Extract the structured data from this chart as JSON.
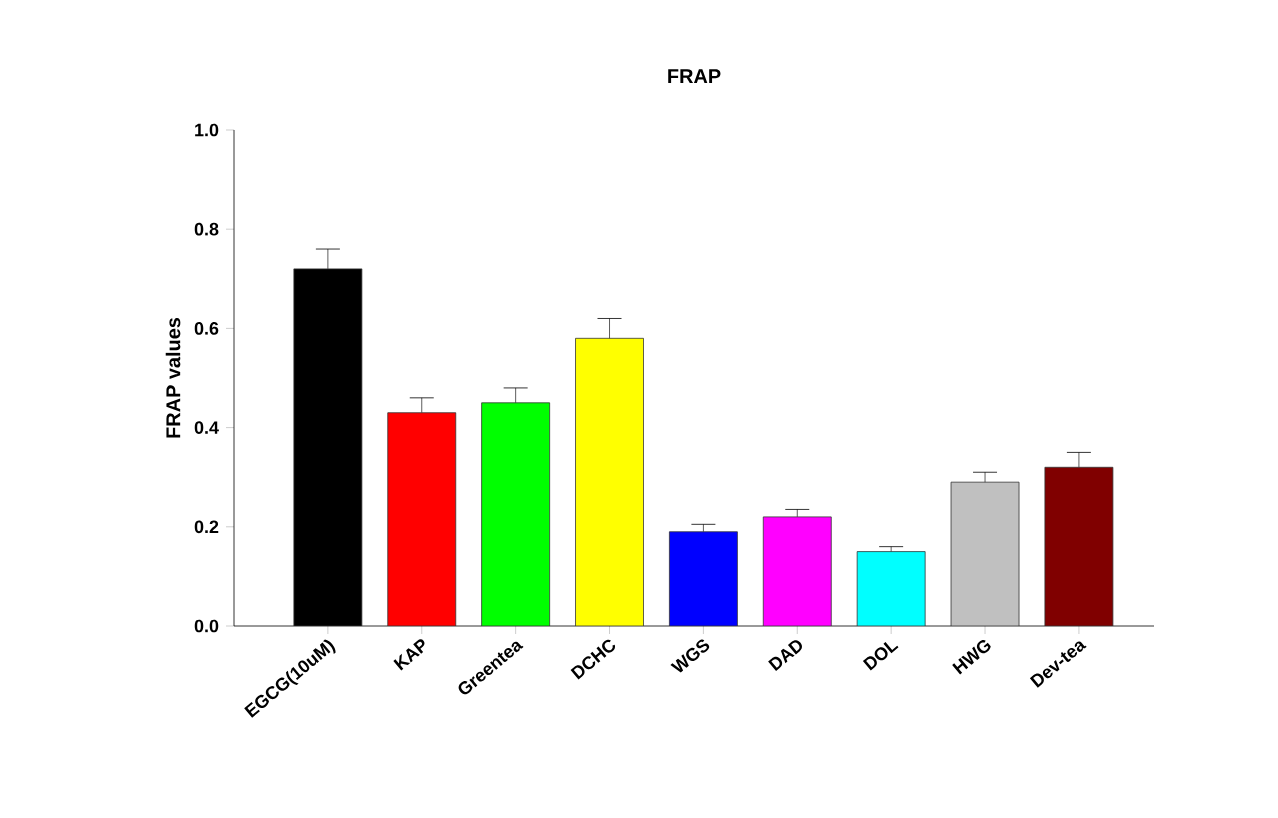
{
  "chart_data": {
    "type": "bar",
    "title": "FRAP",
    "ylabel": "FRAP values",
    "categories": [
      "EGCG(10uM)",
      "KAP",
      "Greentea",
      "DCHC",
      "WGS",
      "DAD",
      "DOL",
      "HWG",
      "Dev-tea"
    ],
    "values": [
      0.72,
      0.43,
      0.45,
      0.58,
      0.19,
      0.22,
      0.15,
      0.29,
      0.32
    ],
    "errors": [
      0.04,
      0.03,
      0.03,
      0.04,
      0.015,
      0.015,
      0.01,
      0.02,
      0.03
    ],
    "colors": [
      "#000000",
      "#ff0000",
      "#00ff00",
      "#ffff00",
      "#0000ff",
      "#ff00ff",
      "#00ffff",
      "#c0c0c0",
      "#800000"
    ],
    "ylim": [
      0,
      1.0
    ],
    "yticks": [
      {
        "value": 0,
        "label": "0.0"
      },
      {
        "value": 0.2,
        "label": "0.2"
      },
      {
        "value": 0.4,
        "label": "0.4"
      },
      {
        "value": 0.6,
        "label": "0.6"
      },
      {
        "value": 0.8,
        "label": "0.8"
      },
      {
        "value": 1.0,
        "label": "1.0"
      }
    ]
  }
}
